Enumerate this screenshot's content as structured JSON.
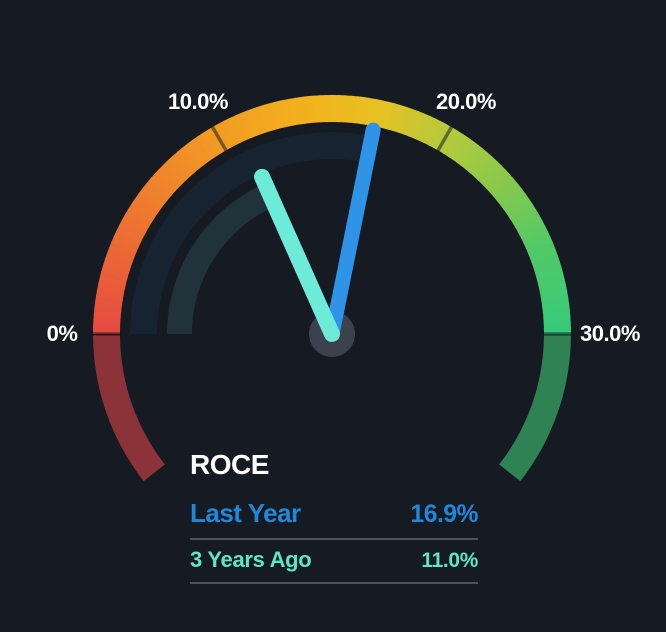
{
  "title": "ROCE",
  "legend": {
    "rows": [
      {
        "label": "Last Year",
        "value": "16.9%"
      },
      {
        "label": "3 Years Ago",
        "value": "11.0%"
      }
    ]
  },
  "colors": {
    "background": "#151a23",
    "tick_label_text": "#ffffff",
    "legend_title_text": "#ffffff",
    "divider": "#4d535d",
    "hub": "#3c414d",
    "tick_mark": "rgba(10,14,20,0.5)",
    "last_year_text": "#1f89d9",
    "three_years_ago_text": "#5fe4c4"
  },
  "chart_data": {
    "type": "gauge",
    "title": "ROCE",
    "unit": "%",
    "min": 0,
    "max": 30,
    "ticks": [
      0,
      10,
      20,
      30
    ],
    "tick_labels": [
      "0%",
      "10.0%",
      "20.0%",
      "30.0%"
    ],
    "series": [
      {
        "name": "Last Year",
        "value": 16.9,
        "display": "16.9%",
        "needle_color": "#2f93e8",
        "track_color": "#172330",
        "text_color": "#1f89d9"
      },
      {
        "name": "3 Years Ago",
        "value": 11.0,
        "display": "11.0%",
        "needle_color": "#6eead9",
        "track_color": "#20323a",
        "text_color": "#5fe4c4"
      }
    ],
    "arc_color_stops": [
      {
        "at": 0,
        "color": "#e64a42"
      },
      {
        "at": 3,
        "color": "#ea6337"
      },
      {
        "at": 6,
        "color": "#ef7d2e"
      },
      {
        "at": 10,
        "color": "#f29b24"
      },
      {
        "at": 13,
        "color": "#f2ad1e"
      },
      {
        "at": 15,
        "color": "#f0b71d"
      },
      {
        "at": 17,
        "color": "#e7c124"
      },
      {
        "at": 20,
        "color": "#b4ca3c"
      },
      {
        "at": 23,
        "color": "#8ac94c"
      },
      {
        "at": 26,
        "color": "#55c966"
      },
      {
        "at": 30,
        "color": "#36ca7a"
      }
    ],
    "below_min_color": "#8b3339",
    "above_max_color": "#2e8254",
    "layout": {
      "start_angle": 180,
      "end_angle": 0,
      "overscan_degrees": 38,
      "legend_position": "bottom-center",
      "grid": false
    }
  }
}
